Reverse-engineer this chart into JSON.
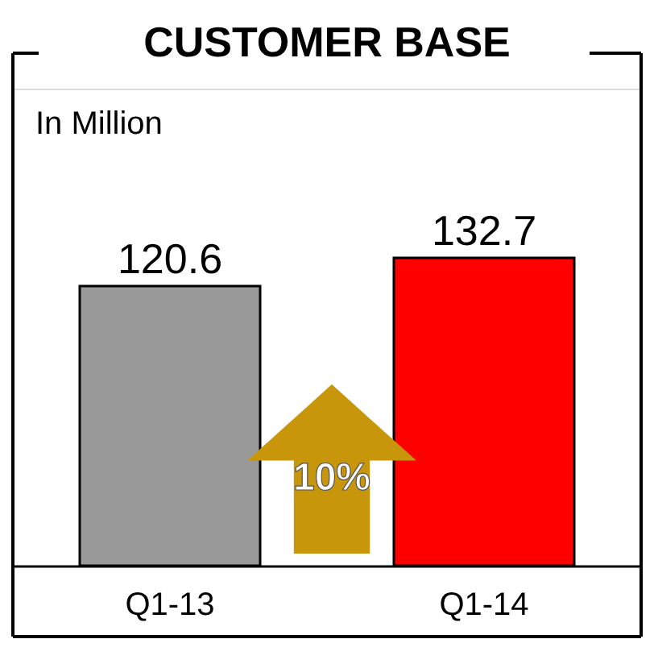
{
  "chart_data": {
    "type": "bar",
    "title": "CUSTOMER BASE",
    "subtitle": "In Million",
    "categories": [
      "Q1-13",
      "Q1-14"
    ],
    "values": [
      120.6,
      132.7
    ],
    "colors": [
      "#999999",
      "#ff0000"
    ],
    "data_labels": true,
    "annotations": [
      "10%"
    ]
  }
}
